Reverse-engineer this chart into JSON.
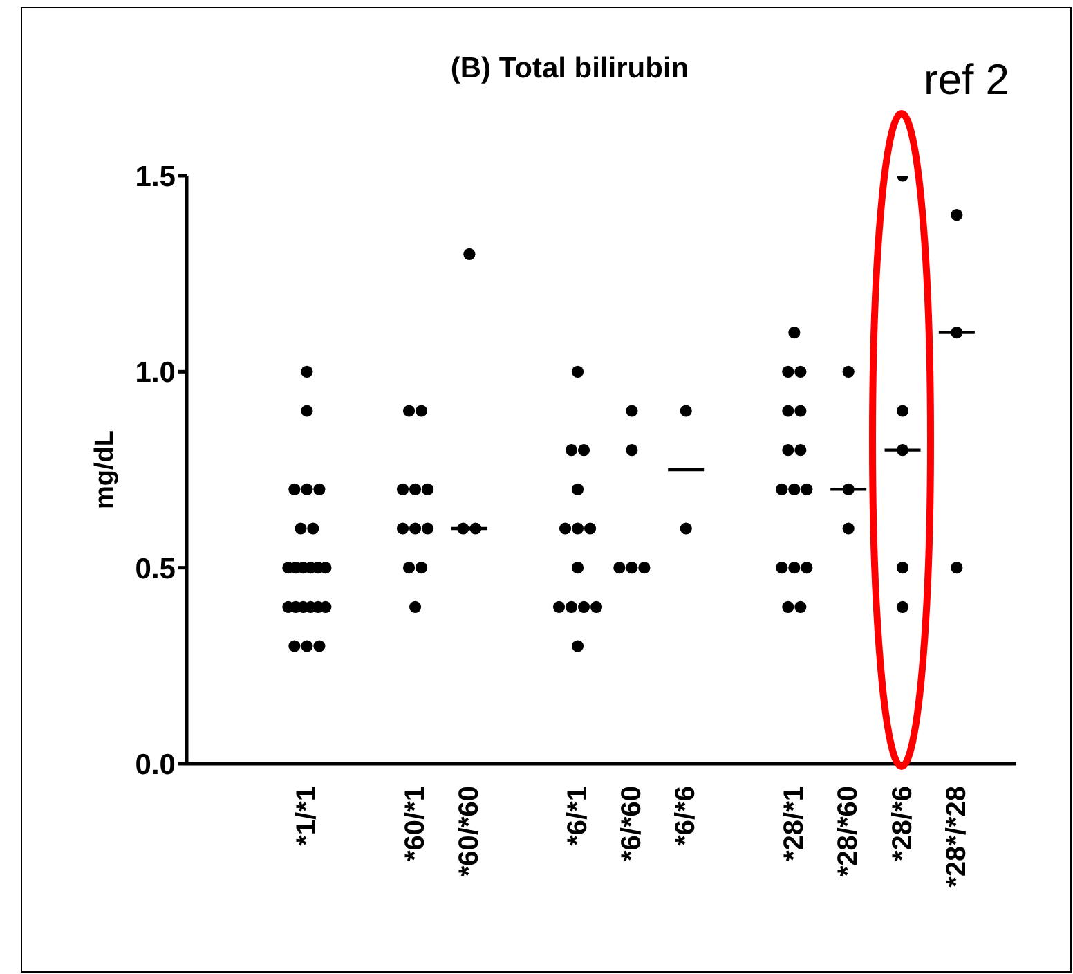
{
  "chart_data": {
    "type": "scatter",
    "title": "(B)  Total bilirubin",
    "ylabel": "mg/dL",
    "annotations": [
      "ref 2"
    ],
    "categories": [
      "*1/*1",
      null,
      "*60/*1",
      "*60/*60",
      null,
      "*6/*1",
      "*6/*60",
      "*6/*6",
      null,
      "*28/*1",
      "*28/*60",
      "*28/*6",
      "*28*/*28"
    ],
    "series": [
      {
        "marker": "circle",
        "color": "#000000",
        "x": [
          "*1/*1",
          "*1/*1",
          "*1/*1",
          "*1/*1",
          "*1/*1",
          "*1/*1",
          "*1/*1",
          "*1/*1",
          "*1/*1",
          "*1/*1",
          "*1/*1",
          "*1/*1",
          "*1/*1",
          "*1/*1",
          "*1/*1",
          "*1/*1",
          "*1/*1",
          "*1/*1",
          "*1/*1",
          "*1/*1",
          "*1/*1",
          "*1/*1",
          "*60/*1",
          "*60/*1",
          "*60/*1",
          "*60/*1",
          "*60/*1",
          "*60/*1",
          "*60/*1",
          "*60/*1",
          "*60/*1",
          "*60/*1",
          "*60/*1",
          "*60/*60",
          "*60/*60",
          "*60/*60",
          "*6/*1",
          "*6/*1",
          "*6/*1",
          "*6/*1",
          "*6/*1",
          "*6/*1",
          "*6/*1",
          "*6/*1",
          "*6/*1",
          "*6/*1",
          "*6/*1",
          "*6/*1",
          "*6/*1",
          "*6/*60",
          "*6/*60",
          "*6/*60",
          "*6/*60",
          "*6/*60",
          "*6/*6",
          "*6/*6",
          "*28/*1",
          "*28/*1",
          "*28/*1",
          "*28/*1",
          "*28/*1",
          "*28/*1",
          "*28/*1",
          "*28/*1",
          "*28/*1",
          "*28/*1",
          "*28/*1",
          "*28/*1",
          "*28/*1",
          "*28/*1",
          "*28/*1",
          "*28/*60",
          "*28/*60",
          "*28/*60",
          "*28/*6",
          "*28/*6",
          "*28/*6",
          "*28/*6",
          "*28/*6",
          "*28*/*28",
          "*28*/*28",
          "*28*/*28"
        ],
        "values": [
          1.0,
          0.9,
          0.7,
          0.7,
          0.7,
          0.6,
          0.6,
          0.5,
          0.5,
          0.5,
          0.5,
          0.5,
          0.5,
          0.4,
          0.4,
          0.4,
          0.4,
          0.4,
          0.4,
          0.3,
          0.3,
          0.3,
          0.9,
          0.9,
          0.7,
          0.7,
          0.7,
          0.6,
          0.6,
          0.6,
          0.5,
          0.5,
          0.4,
          1.3,
          0.6,
          0.6,
          1.0,
          0.8,
          0.8,
          0.7,
          0.6,
          0.6,
          0.6,
          0.5,
          0.4,
          0.4,
          0.4,
          0.4,
          0.3,
          0.9,
          0.8,
          0.5,
          0.5,
          0.5,
          0.9,
          0.6,
          1.1,
          1.0,
          1.0,
          0.9,
          0.9,
          0.8,
          0.8,
          0.7,
          0.7,
          0.7,
          0.5,
          0.5,
          0.5,
          0.4,
          0.4,
          1.0,
          0.7,
          0.6,
          1.5,
          0.9,
          0.8,
          0.5,
          0.4,
          1.4,
          1.1,
          0.5
        ]
      },
      {
        "type": "box",
        "color": "#000000",
        "boxes": [
          null,
          null,
          null,
          {
            "low": 0.6,
            "q1": 0.6,
            "median": 0.6,
            "q3": 0.6,
            "high": 0.6
          },
          null,
          null,
          null,
          {
            "low": 0.75,
            "q1": 0.75,
            "median": 0.75,
            "q3": 0.75,
            "high": 0.75
          },
          null,
          null,
          {
            "low": 0.7,
            "q1": 0.7,
            "median": 0.7,
            "q3": 0.7,
            "high": 0.7
          },
          {
            "low": 0.8,
            "q1": 0.8,
            "median": 0.8,
            "q3": 0.8,
            "high": 0.8
          },
          {
            "low": 1.1,
            "q1": 1.1,
            "median": 1.1,
            "q3": 1.1,
            "high": 1.1
          }
        ]
      }
    ],
    "ylim": [
      0,
      1.5
    ],
    "yticks": [
      {
        "value": 0,
        "label": "0.0"
      },
      0.5,
      {
        "value": 1,
        "label": "1.0"
      },
      1.5
    ],
    "grid": false,
    "legend": false
  }
}
